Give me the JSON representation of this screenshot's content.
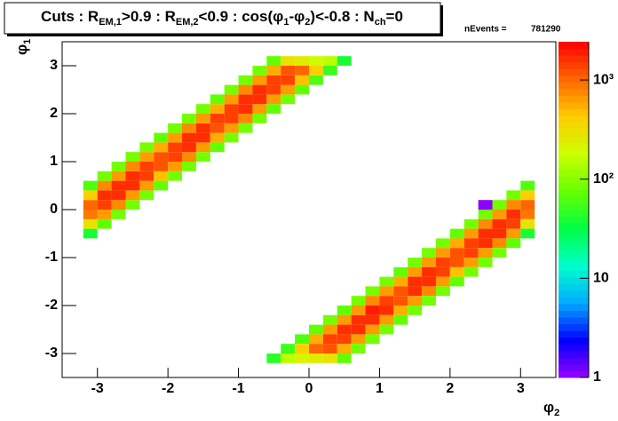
{
  "chart_data": {
    "type": "heatmap",
    "title": [
      "Cuts : R",
      "EM,1",
      ">0.9 : R",
      "EM,2",
      "<0.9 : cos(φ",
      "1",
      "-φ",
      "2",
      ")<-0.8 : N",
      "ch",
      "=0"
    ],
    "stats_label": "nEvents =",
    "stats_value": 781290,
    "x_label": [
      "φ",
      "2"
    ],
    "y_label": [
      "φ",
      "1"
    ],
    "xlim": [
      -3.5,
      3.5
    ],
    "ylim": [
      -3.5,
      3.5
    ],
    "xticks": [
      -3,
      -2,
      -1,
      0,
      1,
      2,
      3
    ],
    "yticks": [
      -3,
      -2,
      -1,
      0,
      1,
      2,
      3
    ],
    "zlim": [
      1,
      2430
    ],
    "log_z": true,
    "zticks": [
      1,
      10,
      {
        "value": 100,
        "label": "10²"
      },
      {
        "value": 1000,
        "label": "10³"
      }
    ],
    "colormap": [
      "#9a00ff",
      "#0000ff",
      "#00aaff",
      "#00ffcc",
      "#00ff44",
      "#66ff00",
      "#ccff00",
      "#ffcc00",
      "#ff6600",
      "#ff0000"
    ],
    "cells": [
      [
        -3.1,
        -0.5,
        40
      ],
      [
        -3.1,
        -0.3,
        300
      ],
      [
        -3.1,
        -0.1,
        900
      ],
      [
        -3.1,
        0.1,
        1000
      ],
      [
        -3.1,
        0.3,
        400
      ],
      [
        -3.1,
        0.5,
        60
      ],
      [
        -2.9,
        -0.3,
        70
      ],
      [
        -2.9,
        -0.1,
        600
      ],
      [
        -2.9,
        0.1,
        1500
      ],
      [
        -2.9,
        0.3,
        1600
      ],
      [
        -2.9,
        0.5,
        700
      ],
      [
        -2.9,
        0.7,
        90
      ],
      [
        -2.7,
        -0.1,
        80
      ],
      [
        -2.7,
        0.1,
        700
      ],
      [
        -2.7,
        0.3,
        1700
      ],
      [
        -2.7,
        0.5,
        1600
      ],
      [
        -2.7,
        0.7,
        650
      ],
      [
        -2.7,
        0.9,
        80
      ],
      [
        -2.5,
        0.1,
        90
      ],
      [
        -2.5,
        0.3,
        650
      ],
      [
        -2.5,
        0.5,
        1600
      ],
      [
        -2.5,
        0.7,
        1700
      ],
      [
        -2.5,
        0.9,
        700
      ],
      [
        -2.5,
        1.1,
        90
      ],
      [
        -2.3,
        0.3,
        80
      ],
      [
        -2.3,
        0.5,
        600
      ],
      [
        -2.3,
        0.7,
        1400
      ],
      [
        -2.3,
        0.9,
        1500
      ],
      [
        -2.3,
        1.1,
        600
      ],
      [
        -2.3,
        1.3,
        80
      ],
      [
        -2.1,
        0.5,
        70
      ],
      [
        -2.1,
        0.7,
        500
      ],
      [
        -2.1,
        0.9,
        1200
      ],
      [
        -2.1,
        1.1,
        1300
      ],
      [
        -2.1,
        1.3,
        550
      ],
      [
        -2.1,
        1.5,
        70
      ],
      [
        -1.9,
        0.7,
        80
      ],
      [
        -1.9,
        0.9,
        600
      ],
      [
        -1.9,
        1.1,
        1500
      ],
      [
        -1.9,
        1.3,
        1400
      ],
      [
        -1.9,
        1.5,
        600
      ],
      [
        -1.9,
        1.7,
        80
      ],
      [
        -1.7,
        0.9,
        90
      ],
      [
        -1.7,
        1.1,
        700
      ],
      [
        -1.7,
        1.3,
        1700
      ],
      [
        -1.7,
        1.5,
        1600
      ],
      [
        -1.7,
        1.7,
        700
      ],
      [
        -1.7,
        1.9,
        90
      ],
      [
        -1.5,
        1.1,
        80
      ],
      [
        -1.5,
        1.3,
        650
      ],
      [
        -1.5,
        1.5,
        1600
      ],
      [
        -1.5,
        1.7,
        1700
      ],
      [
        -1.5,
        1.9,
        650
      ],
      [
        -1.5,
        2.1,
        80
      ],
      [
        -1.3,
        1.3,
        70
      ],
      [
        -1.3,
        1.5,
        550
      ],
      [
        -1.3,
        1.7,
        1300
      ],
      [
        -1.3,
        1.9,
        1400
      ],
      [
        -1.3,
        2.1,
        550
      ],
      [
        -1.3,
        2.3,
        70
      ],
      [
        -1.1,
        1.5,
        80
      ],
      [
        -1.1,
        1.7,
        600
      ],
      [
        -1.1,
        1.9,
        1500
      ],
      [
        -1.1,
        2.1,
        1500
      ],
      [
        -1.1,
        2.3,
        600
      ],
      [
        -1.1,
        2.5,
        80
      ],
      [
        -0.9,
        1.7,
        90
      ],
      [
        -0.9,
        1.9,
        700
      ],
      [
        -0.9,
        2.1,
        1700
      ],
      [
        -0.9,
        2.3,
        1700
      ],
      [
        -0.9,
        2.5,
        700
      ],
      [
        -0.9,
        2.7,
        90
      ],
      [
        -0.7,
        1.9,
        80
      ],
      [
        -0.7,
        2.1,
        650
      ],
      [
        -0.7,
        2.3,
        1600
      ],
      [
        -0.7,
        2.5,
        1600
      ],
      [
        -0.7,
        2.7,
        650
      ],
      [
        -0.7,
        2.9,
        80
      ],
      [
        -0.5,
        2.1,
        70
      ],
      [
        -0.5,
        2.3,
        600
      ],
      [
        -0.5,
        2.5,
        1500
      ],
      [
        -0.5,
        2.7,
        1400
      ],
      [
        -0.5,
        2.9,
        550
      ],
      [
        -0.5,
        3.1,
        70
      ],
      [
        -0.3,
        2.3,
        80
      ],
      [
        -0.3,
        2.5,
        600
      ],
      [
        -0.3,
        2.7,
        1400
      ],
      [
        -0.3,
        2.9,
        1300
      ],
      [
        -0.3,
        3.1,
        300
      ],
      [
        -0.1,
        2.5,
        70
      ],
      [
        -0.1,
        2.7,
        500
      ],
      [
        -0.1,
        2.9,
        1000
      ],
      [
        -0.1,
        3.1,
        250
      ],
      [
        0.1,
        2.7,
        60
      ],
      [
        0.1,
        2.9,
        400
      ],
      [
        0.1,
        3.1,
        200
      ],
      [
        0.3,
        2.9,
        50
      ],
      [
        0.3,
        3.1,
        150
      ],
      [
        0.5,
        3.1,
        40
      ],
      [
        -0.5,
        -3.1,
        45
      ],
      [
        -0.3,
        -2.9,
        50
      ],
      [
        -0.3,
        -3.1,
        160
      ],
      [
        -0.1,
        -2.7,
        60
      ],
      [
        -0.1,
        -2.9,
        420
      ],
      [
        -0.1,
        -3.1,
        210
      ],
      [
        0.1,
        -2.5,
        70
      ],
      [
        0.1,
        -2.7,
        520
      ],
      [
        0.1,
        -2.9,
        1100
      ],
      [
        0.1,
        -3.1,
        260
      ],
      [
        0.3,
        -2.3,
        80
      ],
      [
        0.3,
        -2.5,
        620
      ],
      [
        0.3,
        -2.7,
        1500
      ],
      [
        0.3,
        -2.9,
        1300
      ],
      [
        0.3,
        -3.1,
        320
      ],
      [
        0.5,
        -2.1,
        70
      ],
      [
        0.5,
        -2.3,
        600
      ],
      [
        0.5,
        -2.5,
        1600
      ],
      [
        0.5,
        -2.7,
        1500
      ],
      [
        0.5,
        -2.9,
        560
      ],
      [
        0.5,
        -3.1,
        70
      ],
      [
        0.7,
        -1.9,
        80
      ],
      [
        0.7,
        -2.1,
        660
      ],
      [
        0.7,
        -2.3,
        1700
      ],
      [
        0.7,
        -2.5,
        1600
      ],
      [
        0.7,
        -2.7,
        640
      ],
      [
        0.7,
        -2.9,
        80
      ],
      [
        0.9,
        -1.7,
        90
      ],
      [
        0.9,
        -1.9,
        700
      ],
      [
        0.9,
        -2.1,
        1800
      ],
      [
        0.9,
        -2.3,
        1700
      ],
      [
        0.9,
        -2.5,
        690
      ],
      [
        0.9,
        -2.7,
        90
      ],
      [
        1.1,
        -1.5,
        80
      ],
      [
        1.1,
        -1.7,
        610
      ],
      [
        1.1,
        -1.9,
        1500
      ],
      [
        1.1,
        -2.1,
        1600
      ],
      [
        1.1,
        -2.3,
        600
      ],
      [
        1.1,
        -2.5,
        80
      ],
      [
        1.3,
        -1.3,
        70
      ],
      [
        1.3,
        -1.5,
        540
      ],
      [
        1.3,
        -1.7,
        1300
      ],
      [
        1.3,
        -1.9,
        1300
      ],
      [
        1.3,
        -2.1,
        550
      ],
      [
        1.3,
        -2.3,
        70
      ],
      [
        1.5,
        -1.1,
        80
      ],
      [
        1.5,
        -1.3,
        650
      ],
      [
        1.5,
        -1.5,
        1600
      ],
      [
        1.5,
        -1.7,
        1600
      ],
      [
        1.5,
        -1.9,
        660
      ],
      [
        1.5,
        -2.1,
        80
      ],
      [
        1.7,
        -0.9,
        90
      ],
      [
        1.7,
        -1.1,
        690
      ],
      [
        1.7,
        -1.3,
        1600
      ],
      [
        1.7,
        -1.5,
        1700
      ],
      [
        1.7,
        -1.7,
        700
      ],
      [
        1.7,
        -1.9,
        90
      ],
      [
        1.9,
        -0.7,
        80
      ],
      [
        1.9,
        -0.9,
        600
      ],
      [
        1.9,
        -1.1,
        1400
      ],
      [
        1.9,
        -1.3,
        1500
      ],
      [
        1.9,
        -1.5,
        600
      ],
      [
        1.9,
        -1.7,
        80
      ],
      [
        2.1,
        -0.5,
        70
      ],
      [
        2.1,
        -0.7,
        540
      ],
      [
        2.1,
        -0.9,
        1300
      ],
      [
        2.1,
        -1.1,
        1200
      ],
      [
        2.1,
        -1.3,
        500
      ],
      [
        2.1,
        -1.5,
        70
      ],
      [
        2.3,
        -0.3,
        80
      ],
      [
        2.3,
        -0.5,
        600
      ],
      [
        2.3,
        -0.7,
        1500
      ],
      [
        2.3,
        -0.9,
        1400
      ],
      [
        2.3,
        -1.1,
        600
      ],
      [
        2.3,
        -1.3,
        80
      ],
      [
        2.5,
        -0.1,
        90
      ],
      [
        2.5,
        -0.3,
        700
      ],
      [
        2.5,
        -0.5,
        1700
      ],
      [
        2.5,
        -0.7,
        1600
      ],
      [
        2.5,
        -0.9,
        650
      ],
      [
        2.5,
        -1.1,
        90
      ],
      [
        2.7,
        0.1,
        80
      ],
      [
        2.7,
        -0.1,
        650
      ],
      [
        2.7,
        -0.3,
        1600
      ],
      [
        2.7,
        -0.5,
        1700
      ],
      [
        2.7,
        -0.7,
        700
      ],
      [
        2.7,
        -0.9,
        80
      ],
      [
        2.9,
        0.3,
        90
      ],
      [
        2.9,
        0.1,
        700
      ],
      [
        2.9,
        -0.1,
        1600
      ],
      [
        2.9,
        -0.3,
        1500
      ],
      [
        2.9,
        -0.5,
        600
      ],
      [
        2.9,
        -0.7,
        70
      ],
      [
        3.1,
        0.5,
        60
      ],
      [
        3.1,
        0.3,
        400
      ],
      [
        3.1,
        0.1,
        1000
      ],
      [
        3.1,
        -0.1,
        900
      ],
      [
        3.1,
        -0.3,
        300
      ],
      [
        3.1,
        -0.5,
        40
      ],
      [
        2.5,
        0.1,
        1
      ]
    ]
  }
}
